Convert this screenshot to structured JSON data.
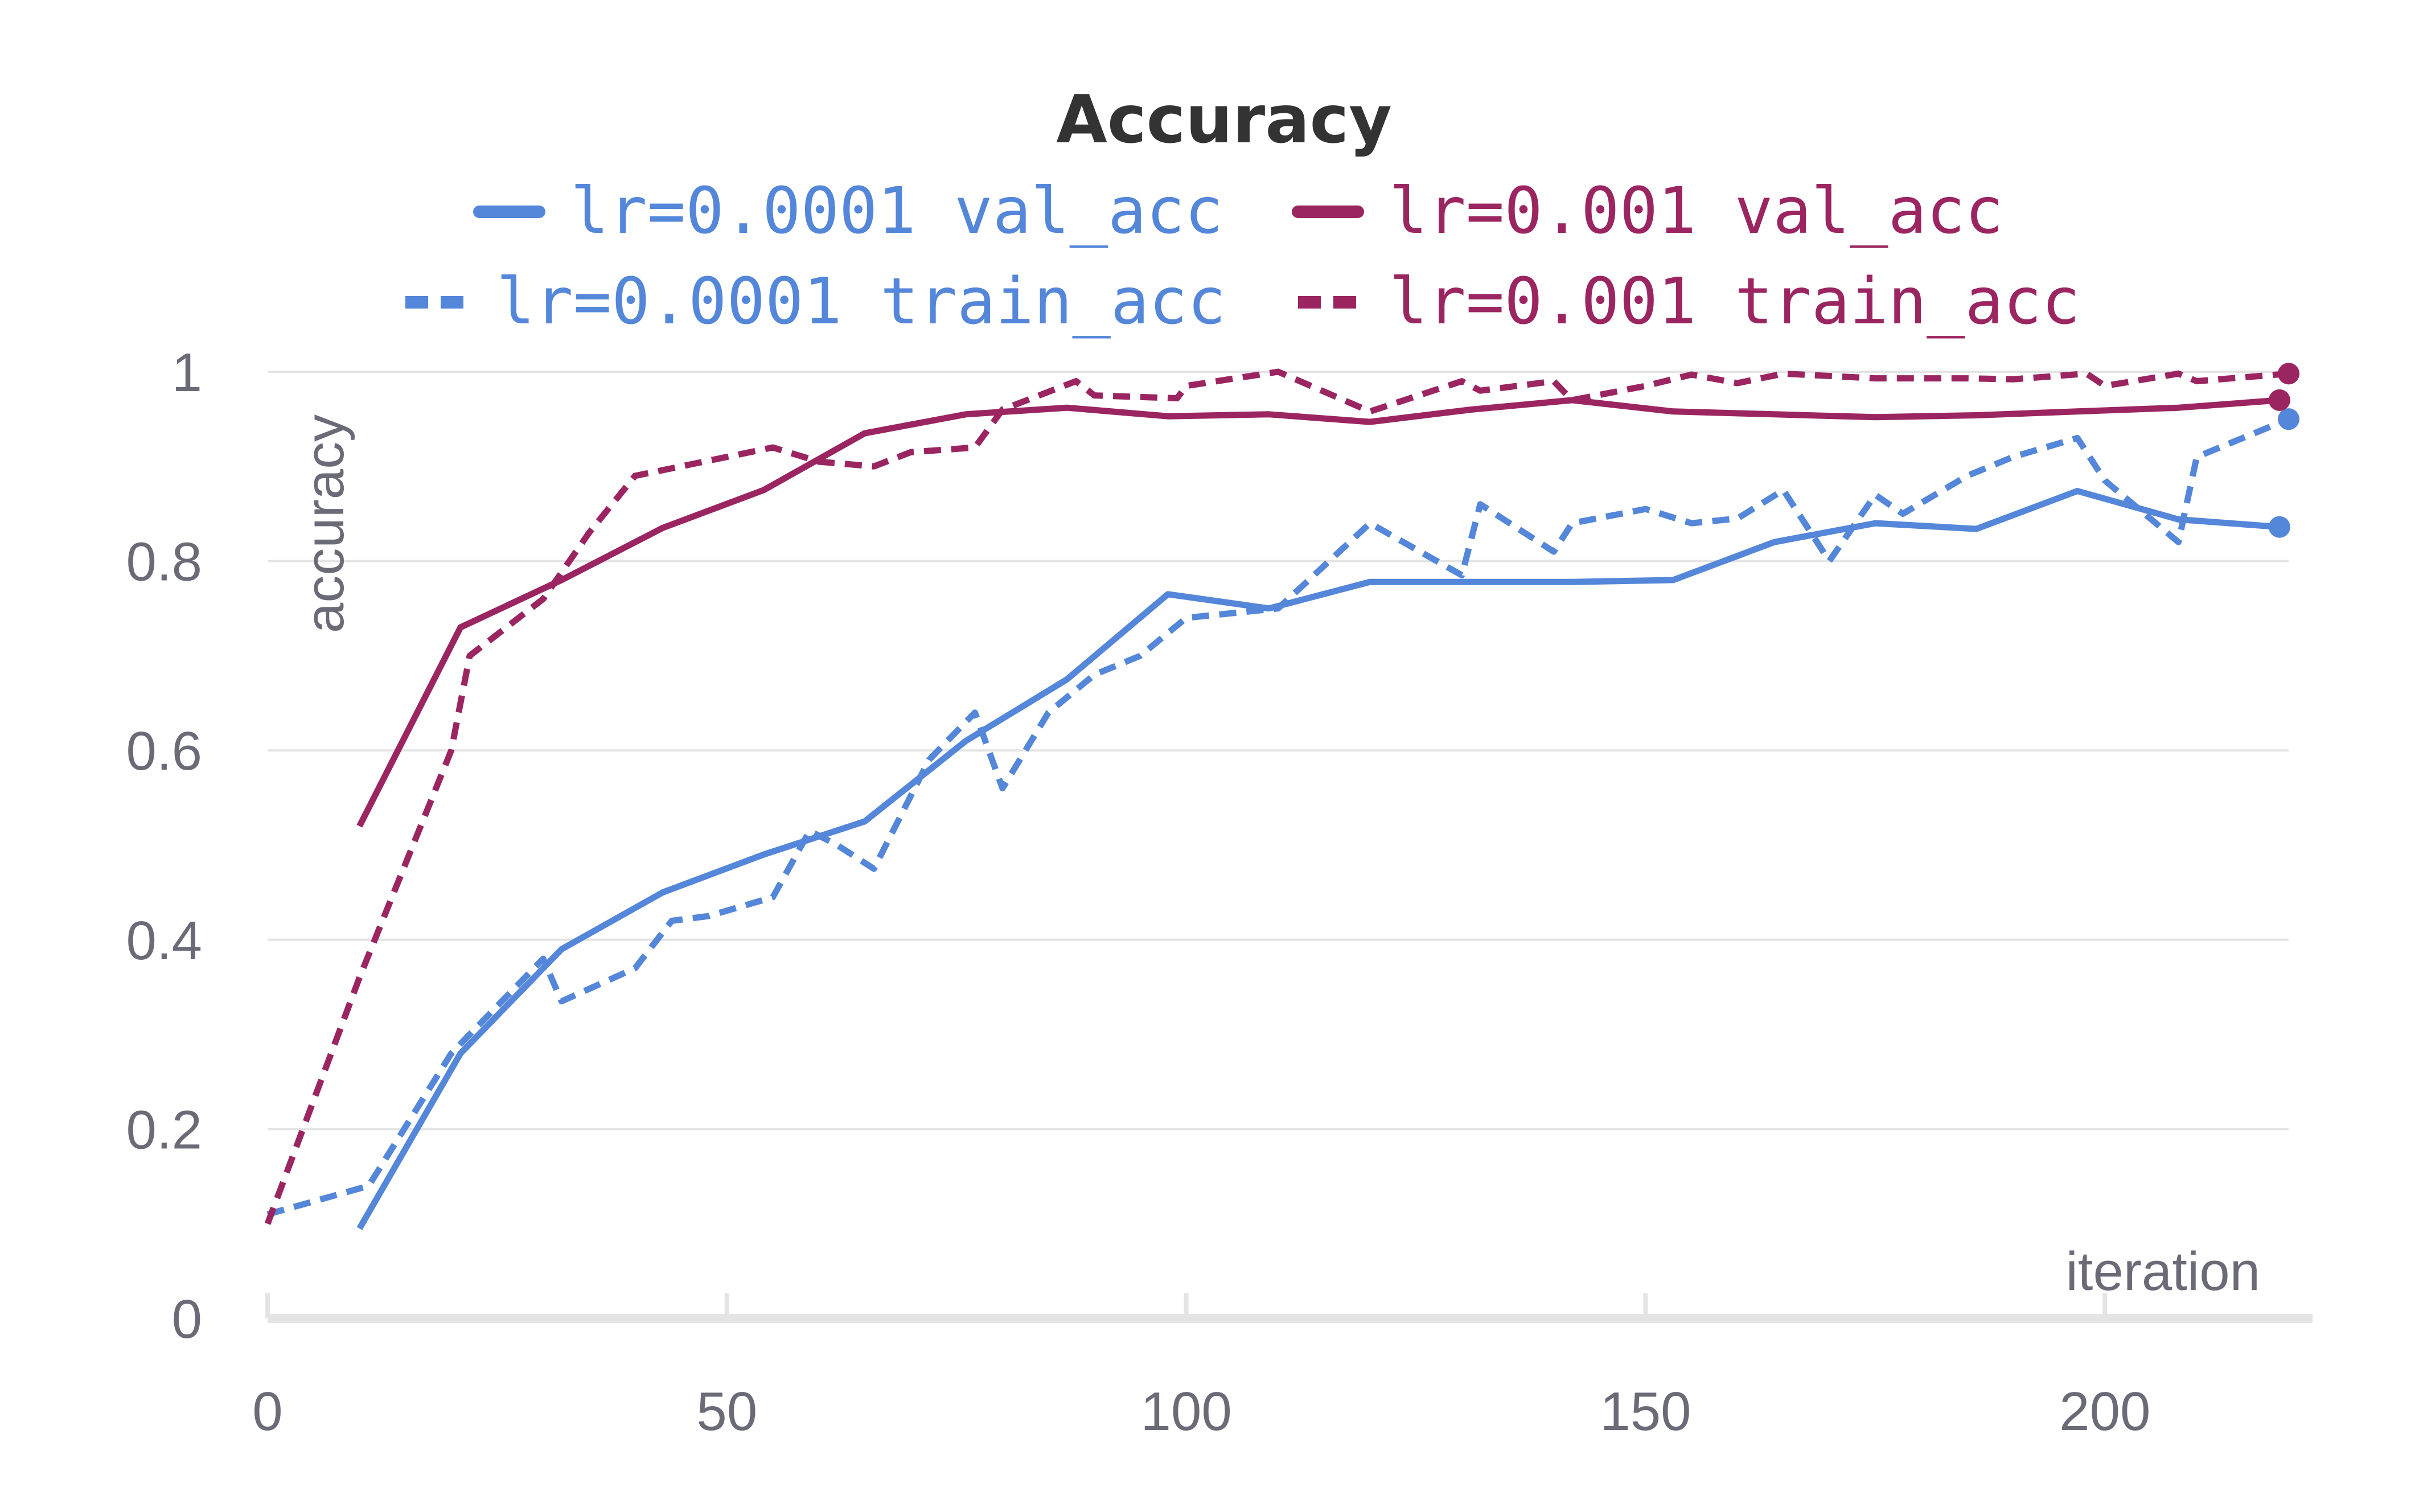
{
  "chart_data": {
    "type": "line",
    "title": "Accuracy",
    "xlabel": "iteration",
    "ylabel": "accuracy",
    "xlim": [
      0,
      220
    ],
    "ylim": [
      0,
      1
    ],
    "x_ticks": [
      0,
      50,
      100,
      150,
      200
    ],
    "y_ticks": [
      0,
      0.2,
      0.4,
      0.6,
      0.8,
      1
    ],
    "y_tick_labels": [
      "0",
      "0.2",
      "0.4",
      "0.6",
      "0.8",
      "1"
    ],
    "grid": true,
    "legend_placement": "top",
    "series": [
      {
        "name": "lr=0.0001 val_acc",
        "color": "#5486d9",
        "dash": "solid",
        "x": [
          10,
          21,
          32,
          43,
          54,
          65,
          76,
          87,
          98,
          109,
          120,
          131,
          142,
          153,
          164,
          175,
          186,
          197,
          208,
          219
        ],
        "y": [
          0.095,
          0.28,
          0.39,
          0.45,
          0.49,
          0.525,
          0.61,
          0.675,
          0.765,
          0.75,
          0.778,
          0.778,
          0.778,
          0.78,
          0.82,
          0.84,
          0.834,
          0.874,
          0.844,
          0.836
        ]
      },
      {
        "name": "lr=0.001 val_acc",
        "color": "#9b2560",
        "dash": "solid",
        "x": [
          10,
          21,
          32,
          43,
          54,
          65,
          76,
          87,
          98,
          109,
          120,
          131,
          142,
          153,
          164,
          175,
          186,
          197,
          208,
          219
        ],
        "y": [
          0.52,
          0.73,
          0.78,
          0.835,
          0.875,
          0.935,
          0.955,
          0.962,
          0.953,
          0.955,
          0.947,
          0.96,
          0.97,
          0.958,
          0.955,
          0.952,
          0.954,
          0.958,
          0.962,
          0.97
        ]
      },
      {
        "name": "lr=0.0001 train_acc",
        "color": "#5486d9",
        "dash": "dashed",
        "x": [
          0,
          11,
          20,
          25,
          30,
          32,
          40,
          44,
          48,
          55,
          59,
          62,
          66,
          72,
          77,
          80,
          85,
          90,
          95,
          100,
          110,
          120,
          130,
          132,
          140,
          142,
          150,
          155,
          160,
          165,
          170,
          175,
          178,
          185,
          190,
          197,
          200,
          208,
          210,
          220
        ],
        "y": [
          0.11,
          0.14,
          0.28,
          0.33,
          0.38,
          0.335,
          0.37,
          0.42,
          0.425,
          0.445,
          0.515,
          0.5,
          0.475,
          0.59,
          0.64,
          0.56,
          0.64,
          0.68,
          0.7,
          0.74,
          0.75,
          0.84,
          0.785,
          0.86,
          0.81,
          0.84,
          0.855,
          0.84,
          0.845,
          0.875,
          0.8,
          0.87,
          0.85,
          0.89,
          0.91,
          0.93,
          0.885,
          0.82,
          0.91,
          0.95
        ]
      },
      {
        "name": "lr=0.001 train_acc",
        "color": "#9b2560",
        "dash": "dashed",
        "x": [
          0,
          10,
          20,
          22,
          30,
          35,
          40,
          45,
          55,
          60,
          66,
          70,
          77,
          80,
          88,
          90,
          99,
          100,
          110,
          120,
          130,
          132,
          140,
          142,
          150,
          155,
          160,
          165,
          175,
          185,
          190,
          198,
          200,
          208,
          210,
          220
        ],
        "y": [
          0.1,
          0.36,
          0.6,
          0.7,
          0.76,
          0.83,
          0.89,
          0.9,
          0.92,
          0.905,
          0.9,
          0.915,
          0.92,
          0.96,
          0.99,
          0.975,
          0.972,
          0.985,
          1.0,
          0.958,
          0.99,
          0.98,
          0.99,
          0.97,
          0.985,
          0.997,
          0.988,
          0.998,
          0.993,
          0.993,
          0.992,
          0.998,
          0.985,
          0.998,
          0.99,
          0.998
        ]
      }
    ]
  }
}
